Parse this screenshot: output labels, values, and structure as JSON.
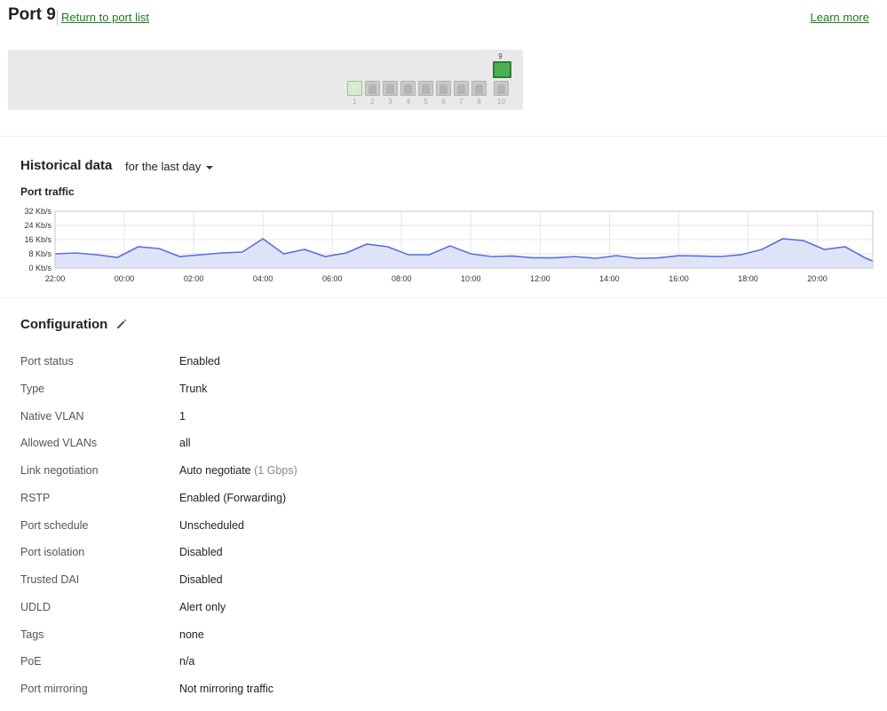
{
  "header": {
    "title": "Port 9",
    "return_link": "Return to port list",
    "learn_more": "Learn more"
  },
  "switch": {
    "ports": [
      {
        "label": "1",
        "state": "uplink"
      },
      {
        "label": "2",
        "state": "inactive"
      },
      {
        "label": "3",
        "state": "inactive"
      },
      {
        "label": "4",
        "state": "inactive"
      },
      {
        "label": "5",
        "state": "inactive"
      },
      {
        "label": "6",
        "state": "inactive"
      },
      {
        "label": "7",
        "state": "inactive"
      },
      {
        "label": "8",
        "state": "inactive"
      },
      {
        "label": "9",
        "state": "active"
      },
      {
        "label": "10",
        "state": "inactive"
      }
    ],
    "active_color": "#4caf50"
  },
  "historical": {
    "title": "Historical data",
    "range": "for the last day",
    "chart_title": "Port traffic"
  },
  "chart_data": {
    "type": "area",
    "title": "Port traffic",
    "y_tick_labels": [
      "32 Kb/s",
      "24 Kb/s",
      "16 Kb/s",
      "8 Kb/s",
      "0 Kb/s"
    ],
    "ylim": [
      0,
      32
    ],
    "x_tick_labels": [
      "22:00",
      "00:00",
      "02:00",
      "04:00",
      "06:00",
      "08:00",
      "10:00",
      "12:00",
      "14:00",
      "16:00",
      "18:00",
      "20:00"
    ],
    "x_tick_hours": [
      0,
      2,
      4,
      6,
      8,
      10,
      12,
      14,
      16,
      18,
      20,
      22
    ],
    "xlim": [
      0,
      23.6
    ],
    "series": [
      {
        "x": [
          0,
          0.6,
          1.2,
          1.8,
          2.4,
          3.0,
          3.6,
          4.2,
          4.8,
          5.4,
          6.0,
          6.6,
          7.2,
          7.8,
          8.4,
          9.0,
          9.6,
          10.2,
          10.8,
          11.4,
          12.0,
          12.6,
          13.2,
          13.8,
          14.4,
          15.0,
          15.6,
          16.2,
          16.8,
          17.4,
          18.0,
          18.6,
          19.2,
          19.8,
          20.4,
          21.0,
          21.6,
          22.2,
          22.8,
          23.4,
          23.6
        ],
        "y": [
          8,
          8.5,
          7.5,
          6,
          12,
          11,
          6.5,
          7.5,
          8.5,
          9,
          16.5,
          8,
          10.5,
          6.5,
          8.5,
          13.5,
          12,
          7.5,
          7.5,
          12.5,
          8,
          6.5,
          6.8,
          5.8,
          5.8,
          6.5,
          5.5,
          7,
          5.5,
          5.7,
          7,
          6.8,
          6.5,
          7.5,
          10.5,
          16.5,
          15.5,
          10.5,
          12,
          5.5,
          4
        ],
        "color": "#5b6ee1",
        "fill": "#dfe3f8"
      }
    ],
    "grid": true
  },
  "config": {
    "title": "Configuration",
    "rows": [
      {
        "key": "Port status",
        "value": "Enabled",
        "extra": ""
      },
      {
        "key": "Type",
        "value": "Trunk",
        "extra": ""
      },
      {
        "key": "Native VLAN",
        "value": "1",
        "extra": ""
      },
      {
        "key": "Allowed VLANs",
        "value": "all",
        "extra": ""
      },
      {
        "key": "Link negotiation",
        "value": "Auto negotiate",
        "extra": "(1 Gbps)"
      },
      {
        "key": "RSTP",
        "value": "Enabled (Forwarding)",
        "extra": ""
      },
      {
        "key": "Port schedule",
        "value": "Unscheduled",
        "extra": ""
      },
      {
        "key": "Port isolation",
        "value": "Disabled",
        "extra": ""
      },
      {
        "key": "Trusted DAI",
        "value": "Disabled",
        "extra": ""
      },
      {
        "key": "UDLD",
        "value": "Alert only",
        "extra": ""
      },
      {
        "key": "Tags",
        "value": "none",
        "extra": ""
      },
      {
        "key": "PoE",
        "value": "n/a",
        "extra": ""
      },
      {
        "key": "Port mirroring",
        "value": "Not mirroring traffic",
        "extra": ""
      }
    ]
  }
}
